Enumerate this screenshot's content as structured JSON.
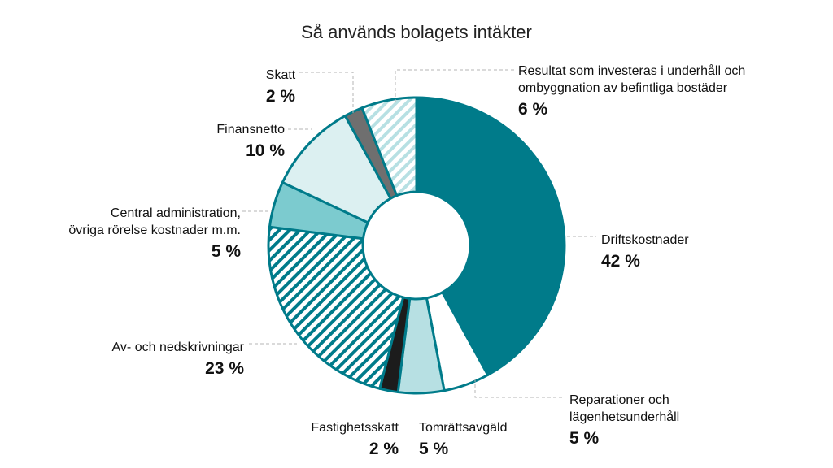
{
  "chart_data": {
    "type": "pie",
    "variant": "donut",
    "title": "Så används bolagets intäkter",
    "unit": "%",
    "slices": [
      {
        "id": "driftskostnader",
        "label": [
          "Driftskostnader"
        ],
        "value": 42,
        "value_label": "42 %",
        "color": "#007b8a",
        "pattern": "solid"
      },
      {
        "id": "reparationer",
        "label": [
          "Reparationer och",
          "lägenhetsunderhåll"
        ],
        "value": 5,
        "value_label": "5 %",
        "color": "#ffffff",
        "pattern": "solid"
      },
      {
        "id": "tomrattsavgald",
        "label": [
          "Tomrättsavgäld"
        ],
        "value": 5,
        "value_label": "5 %",
        "color": "#b7e0e3",
        "pattern": "solid"
      },
      {
        "id": "fastighetsskatt",
        "label": [
          "Fastighetsskatt"
        ],
        "value": 2,
        "value_label": "2 %",
        "color": "#1c1c1c",
        "pattern": "solid"
      },
      {
        "id": "avskrivningar",
        "label": [
          "Av- och nedskrivningar"
        ],
        "value": 23,
        "value_label": "23 %",
        "color": "#007b8a",
        "pattern": "hatch"
      },
      {
        "id": "central-administration",
        "label": [
          "Central administration,",
          "övriga rörelse kostnader m.m."
        ],
        "value": 5,
        "value_label": "5 %",
        "color": "#7ccbcf",
        "pattern": "solid"
      },
      {
        "id": "finansnetto",
        "label": [
          "Finansnetto"
        ],
        "value": 10,
        "value_label": "10 %",
        "color": "#dcf0f1",
        "pattern": "solid"
      },
      {
        "id": "skatt",
        "label": [
          "Skatt"
        ],
        "value": 2,
        "value_label": "2 %",
        "color": "#6f6f6f",
        "pattern": "solid"
      },
      {
        "id": "resultat",
        "label": [
          "Resultat som investeras i underhåll och",
          "ombyggnation av befintliga bostäder"
        ],
        "value": 6,
        "value_label": "6 %",
        "color": "#b7e0e3",
        "pattern": "hatch-light"
      }
    ],
    "border_color": "#007b8a",
    "legend": "none"
  }
}
